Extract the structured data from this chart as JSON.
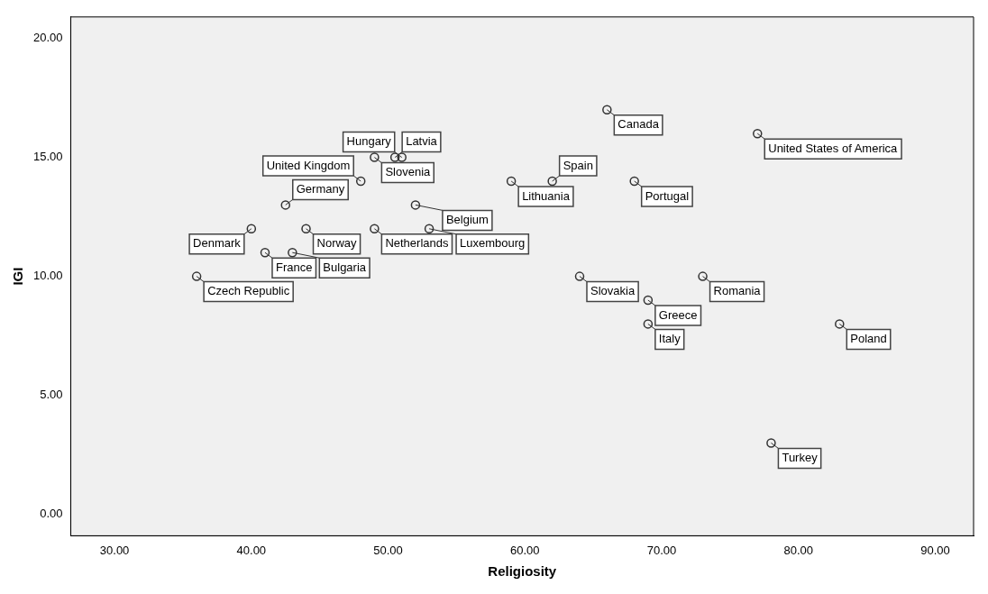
{
  "chart_data": {
    "type": "scatter",
    "xlabel": "Religiosity",
    "ylabel": "IGI",
    "x": [
      36,
      40,
      41,
      43,
      42.5,
      44,
      49,
      48,
      49,
      50.5,
      51,
      52,
      53,
      59,
      62,
      66,
      64,
      68,
      69,
      69,
      77,
      73,
      83,
      78
    ],
    "values": [
      10,
      12,
      11,
      11,
      13,
      12,
      12,
      14,
      15,
      15,
      15,
      13,
      12,
      14,
      14,
      17,
      10,
      14,
      9,
      8,
      16,
      10,
      8,
      3
    ],
    "color": "#333333",
    "marker": "circle",
    "grid": false,
    "legend": false,
    "xlim": [
      26.8,
      92.8
    ],
    "ylim": [
      -0.9,
      20.9
    ],
    "xticks": [
      {
        "value": 30,
        "label": "30.00"
      },
      {
        "value": 40,
        "label": "40.00"
      },
      {
        "value": 50,
        "label": "50.00"
      },
      {
        "value": 60,
        "label": "60.00"
      },
      {
        "value": 70,
        "label": "70.00"
      },
      {
        "value": 80,
        "label": "80.00"
      },
      {
        "value": 90,
        "label": "90.00"
      }
    ],
    "yticks": [
      {
        "value": 0,
        "label": "0.00"
      },
      {
        "value": 5,
        "label": "5.00"
      },
      {
        "value": 10,
        "label": "10.00"
      },
      {
        "value": 15,
        "label": "15.00"
      },
      {
        "value": 20,
        "label": "20.00"
      }
    ],
    "annotations": [
      {
        "text": "Czech Republic",
        "x": 36,
        "y": 10
      },
      {
        "text": "Denmark",
        "x": 40,
        "y": 12
      },
      {
        "text": "France",
        "x": 41,
        "y": 11
      },
      {
        "text": "Bulgaria",
        "x": 43,
        "y": 11
      },
      {
        "text": "Germany",
        "x": 42.5,
        "y": 13
      },
      {
        "text": "Norway",
        "x": 44,
        "y": 12
      },
      {
        "text": "Netherlands",
        "x": 49,
        "y": 12
      },
      {
        "text": "United Kingdom",
        "x": 48,
        "y": 14
      },
      {
        "text": "Slovenia",
        "x": 49,
        "y": 15
      },
      {
        "text": "Latvia",
        "x": 50.5,
        "y": 15
      },
      {
        "text": "Hungary",
        "x": 51,
        "y": 15
      },
      {
        "text": "Belgium",
        "x": 52,
        "y": 13
      },
      {
        "text": "Luxembourg",
        "x": 53,
        "y": 12
      },
      {
        "text": "Lithuania",
        "x": 59,
        "y": 14
      },
      {
        "text": "Spain",
        "x": 62,
        "y": 14
      },
      {
        "text": "Canada",
        "x": 66,
        "y": 17
      },
      {
        "text": "Slovakia",
        "x": 64,
        "y": 10
      },
      {
        "text": "Portugal",
        "x": 68,
        "y": 14
      },
      {
        "text": "Greece",
        "x": 69,
        "y": 9
      },
      {
        "text": "Italy",
        "x": 69,
        "y": 8
      },
      {
        "text": "United States of America",
        "x": 77,
        "y": 16
      },
      {
        "text": "Romania",
        "x": 73,
        "y": 10
      },
      {
        "text": "Poland",
        "x": 83,
        "y": 8
      },
      {
        "text": "Turkey",
        "x": 78,
        "y": 3
      }
    ]
  }
}
